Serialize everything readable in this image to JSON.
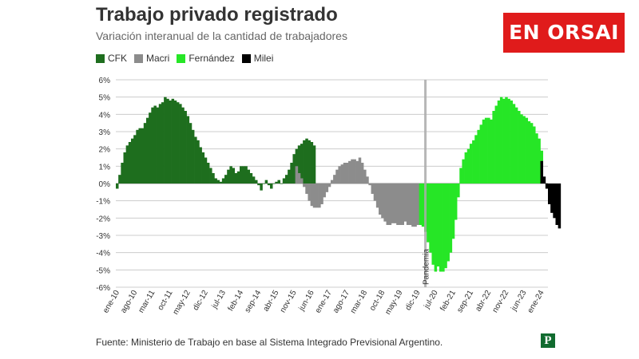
{
  "header": {
    "title": "Trabajo privado registrado",
    "subtitle": "Variación interanual de la cantidad de trabajadores",
    "brand": "EN ORSAI"
  },
  "legend": [
    {
      "name": "CFK",
      "color": "#1e6e1e"
    },
    {
      "name": "Macri",
      "color": "#8c8c8c"
    },
    {
      "name": "Fernández",
      "color": "#26e626"
    },
    {
      "name": "Milei",
      "color": "#000000"
    }
  ],
  "footer": {
    "source": "Fuente: Ministerio de Trabajo en base al Sistema Integrado Previsional Argentino.",
    "logo_letter": "P"
  },
  "chart_data": {
    "type": "bar",
    "title": "Trabajo privado registrado",
    "subtitle": "Variación interanual de la cantidad de trabajadores",
    "unit": "%",
    "x_range": [
      "ene-10",
      "mar-24"
    ],
    "ylim": [
      -6,
      6
    ],
    "yticks": [
      "6%",
      "5%",
      "4%",
      "3%",
      "2%",
      "1%",
      "0%",
      "-1%",
      "-2%",
      "-3%",
      "-4%",
      "-5%",
      "-6%"
    ],
    "xticks": [
      "ene-10",
      "ago-10",
      "mar-11",
      "oct-11",
      "may-12",
      "dic-12",
      "jul-13",
      "feb-14",
      "sep-14",
      "abr-15",
      "nov-15",
      "jun-16",
      "ene-17",
      "ago-17",
      "mar-18",
      "oct-18",
      "may-19",
      "dic-19",
      "jul-20",
      "feb-21",
      "sep-21",
      "abr-22",
      "nov-22",
      "jun-23",
      "ene-24"
    ],
    "grid": true,
    "legend_position": "top-left",
    "annotations": [
      {
        "text": "Pandemia",
        "x": "mar-20"
      }
    ],
    "series": [
      {
        "name": "CFK",
        "start": "ene-10",
        "color": "#1e6e1e",
        "values": [
          -0.3,
          0.5,
          1.2,
          1.8,
          2.2,
          2.4,
          2.6,
          2.8,
          3.1,
          3.2,
          3.2,
          3.5,
          3.8,
          4.1,
          4.4,
          4.5,
          4.4,
          4.6,
          4.7,
          5.0,
          4.9,
          4.8,
          4.9,
          4.8,
          4.7,
          4.6,
          4.4,
          4.2,
          3.9,
          3.5,
          3.1,
          2.7,
          2.5,
          2.1,
          1.8,
          1.5,
          1.2,
          0.9,
          0.6,
          0.3,
          0.2,
          0.1,
          0.3,
          0.5,
          0.8,
          1.0,
          0.9,
          0.6,
          0.7,
          1.0,
          1.0,
          1.0,
          0.8,
          0.6,
          0.4,
          0.2,
          -0.1,
          -0.4,
          0.0,
          0.2,
          -0.1,
          -0.3,
          0.0,
          0.1,
          0.2,
          0.0,
          0.3,
          0.5,
          0.8,
          1.2,
          1.7,
          2.0,
          2.2,
          2.3,
          2.5,
          2.6,
          2.5,
          2.4,
          2.2
        ]
      },
      {
        "name": "Macri",
        "start": "dic-15",
        "color": "#8c8c8c",
        "values": [
          1.0,
          0.6,
          0.3,
          -0.2,
          -0.6,
          -1.0,
          -1.3,
          -1.4,
          -1.4,
          -1.4,
          -1.2,
          -0.8,
          -0.5,
          -0.2,
          0.2,
          0.5,
          0.8,
          1.0,
          1.1,
          1.2,
          1.2,
          1.3,
          1.4,
          1.4,
          1.3,
          1.5,
          1.2,
          0.8,
          0.4,
          -0.1,
          -0.6,
          -1.0,
          -1.4,
          -1.8,
          -2.0,
          -2.2,
          -2.4,
          -2.4,
          -2.3,
          -2.3,
          -2.4,
          -2.4,
          -2.4,
          -2.2,
          -2.4,
          -2.4,
          -2.5,
          -2.5,
          -2.4
        ]
      },
      {
        "name": "Fernández",
        "start": "ene-20",
        "color": "#26e626",
        "values": [
          -2.4,
          -2.5,
          -2.8,
          -3.4,
          -4.0,
          -4.7,
          -5.1,
          -4.8,
          -5.1,
          -5.1,
          -4.9,
          -4.5,
          -4.0,
          -3.2,
          -2.1,
          -0.8,
          0.9,
          1.4,
          1.8,
          2.0,
          2.3,
          2.5,
          2.8,
          3.1,
          3.4,
          3.7,
          3.8,
          3.8,
          3.7,
          4.2,
          4.5,
          4.8,
          5.0,
          4.9,
          5.0,
          4.9,
          4.8,
          4.6,
          4.4,
          4.2,
          4.0,
          3.9,
          3.8,
          3.6,
          3.5,
          3.3,
          2.9,
          2.6,
          1.9
        ]
      },
      {
        "name": "Milei",
        "start": "ene-24",
        "color": "#000000",
        "values": [
          1.3,
          0.4,
          -0.3,
          -1.2,
          -1.7,
          -2.0,
          -2.4,
          -2.6
        ]
      }
    ]
  }
}
